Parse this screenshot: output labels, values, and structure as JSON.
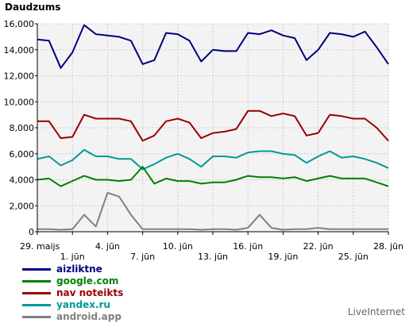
{
  "chart_data": {
    "type": "line",
    "title": "Daudzums",
    "ylim": [
      0,
      16000
    ],
    "y_ticks": [
      "0",
      "2,000",
      "4,000",
      "6,000",
      "8,000",
      "10,000",
      "12,000",
      "14,000",
      "16,000"
    ],
    "y_tick_values": [
      0,
      2000,
      4000,
      6000,
      8000,
      10000,
      12000,
      14000,
      16000
    ],
    "x_ticks": [
      {
        "index": 0,
        "label": "29. maijs",
        "row": 0
      },
      {
        "index": 3,
        "label": "1. jūn",
        "row": 1
      },
      {
        "index": 6,
        "label": "4. jūn",
        "row": 0
      },
      {
        "index": 9,
        "label": "7. jūn",
        "row": 1
      },
      {
        "index": 12,
        "label": "10. jūn",
        "row": 0
      },
      {
        "index": 15,
        "label": "13. jūn",
        "row": 1
      },
      {
        "index": 18,
        "label": "16. jūn",
        "row": 0
      },
      {
        "index": 21,
        "label": "19. jūn",
        "row": 1
      },
      {
        "index": 24,
        "label": "22. jūn",
        "row": 0
      },
      {
        "index": 27,
        "label": "25. jūn",
        "row": 1
      },
      {
        "index": 30,
        "label": "28. jūn",
        "row": 0
      }
    ],
    "grid": true,
    "legend_position": "bottom-left",
    "series": [
      {
        "name": "aizliktne",
        "color": "#000080",
        "values": [
          14800,
          14700,
          12600,
          13800,
          15900,
          15200,
          15100,
          15000,
          14700,
          12900,
          13200,
          15300,
          15200,
          14700,
          13100,
          14000,
          13900,
          13900,
          15300,
          15200,
          15500,
          15100,
          14900,
          13200,
          14000,
          15300,
          15200,
          15000,
          15400,
          14200,
          12900
        ]
      },
      {
        "name": "google.com",
        "color": "#008000",
        "values": [
          4000,
          4100,
          3500,
          3900,
          4300,
          4000,
          4000,
          3900,
          4000,
          5000,
          3700,
          4100,
          3900,
          3900,
          3700,
          3800,
          3800,
          4000,
          4300,
          4200,
          4200,
          4100,
          4200,
          3900,
          4100,
          4300,
          4100,
          4100,
          4100,
          3800,
          3500
        ]
      },
      {
        "name": "nav noteikts",
        "color": "#990000",
        "values": [
          8500,
          8500,
          7200,
          7300,
          9000,
          8700,
          8700,
          8700,
          8500,
          7000,
          7400,
          8500,
          8700,
          8400,
          7200,
          7600,
          7700,
          7900,
          9300,
          9300,
          8900,
          9100,
          8900,
          7400,
          7600,
          9000,
          8900,
          8700,
          8700,
          8000,
          7000
        ]
      },
      {
        "name": "yandex.ru",
        "color": "#009999",
        "values": [
          5600,
          5800,
          5100,
          5500,
          6300,
          5800,
          5800,
          5600,
          5600,
          4800,
          5200,
          5700,
          6000,
          5600,
          5000,
          5800,
          5800,
          5700,
          6100,
          6200,
          6200,
          6000,
          5900,
          5300,
          5800,
          6200,
          5700,
          5800,
          5600,
          5300,
          4900
        ]
      },
      {
        "name": "android.app",
        "color": "#808080",
        "values": [
          200,
          200,
          150,
          200,
          1300,
          400,
          3000,
          2700,
          1300,
          200,
          200,
          200,
          200,
          200,
          150,
          200,
          200,
          150,
          300,
          1300,
          300,
          150,
          200,
          200,
          300,
          200,
          200,
          200,
          200,
          200,
          200
        ]
      }
    ]
  },
  "legend": [
    {
      "label": "aizliktne",
      "color": "#000080"
    },
    {
      "label": "google.com",
      "color": "#008000"
    },
    {
      "label": "nav noteikts",
      "color": "#990000"
    },
    {
      "label": "yandex.ru",
      "color": "#009999"
    },
    {
      "label": "android.app",
      "color": "#808080"
    }
  ],
  "brand": "LiveInternet"
}
